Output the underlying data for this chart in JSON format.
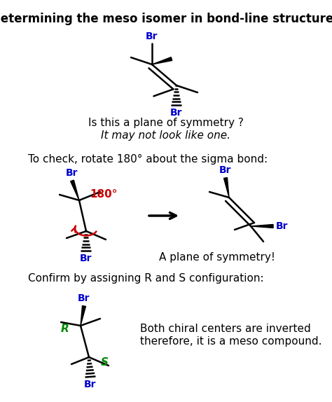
{
  "title": "Determining the meso isomer in bond-line structures",
  "title_fontsize": 12,
  "bg_color": "#ffffff",
  "text_color": "#000000",
  "blue_color": "#0000cc",
  "red_color": "#cc0000",
  "green_color": "#008800",
  "line1": "Is this a plane of symmetry ?",
  "line2": "It may not look like one.",
  "line3": "To check, rotate 180° about the sigma bond:",
  "line4": "A plane of symmetry!",
  "line5": "Confirm by assigning R and S configuration:",
  "line6a": "Both chiral centers are inverted",
  "line6b": "therefore, it is a meso compound."
}
